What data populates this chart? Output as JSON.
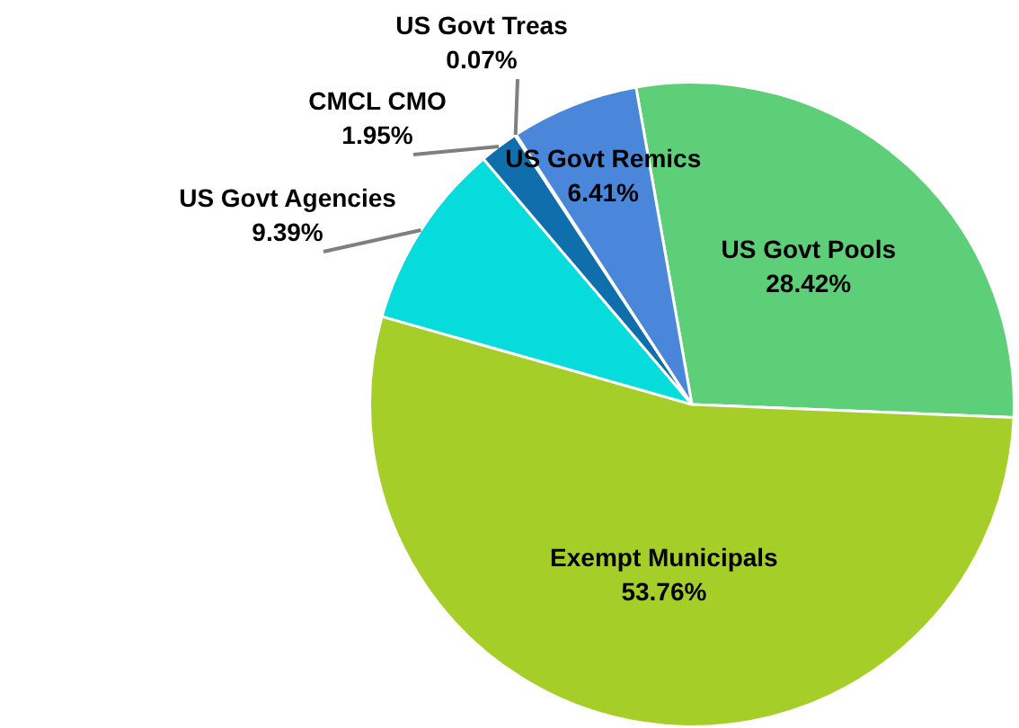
{
  "chart_data": {
    "type": "pie",
    "categories": [
      "US Govt Pools",
      "Exempt Municipals",
      "US Govt Agencies",
      "CMCL CMO",
      "US Govt Treas",
      "US Govt Remics"
    ],
    "values": [
      28.42,
      53.76,
      9.39,
      1.95,
      0.07,
      6.41
    ],
    "colors": [
      "#5ccf78",
      "#a5cf28",
      "#06dcdc",
      "#0e6fac",
      "#2a6fc0",
      "#4a86d9"
    ],
    "value_labels": [
      "28.42%",
      "53.76%",
      "9.39%",
      "1.95%",
      "0.07%",
      "6.41%"
    ],
    "legend": false
  }
}
